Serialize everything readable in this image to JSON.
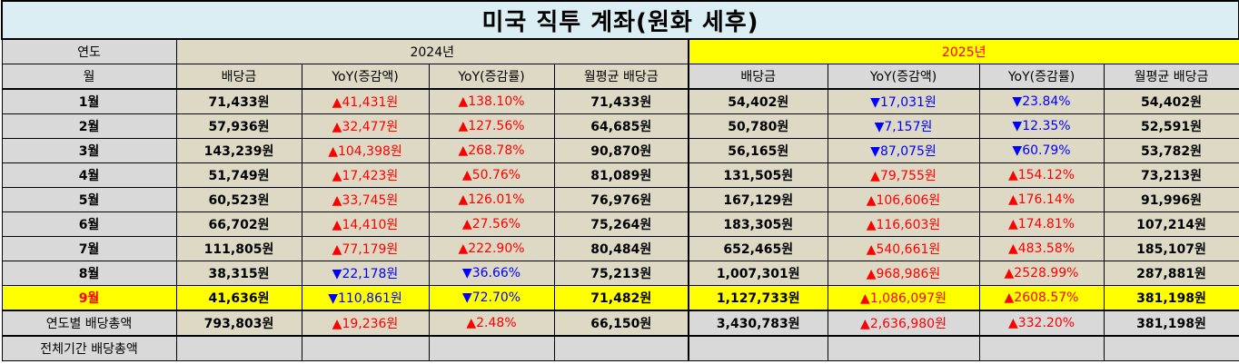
{
  "title": "미국 직투 계좌(원화 세후)",
  "year_label": "연도",
  "month_label": "월",
  "years": [
    "2024년",
    "2025년"
  ],
  "columns": [
    "배당금",
    "YoY(증감액)",
    "YoY(증감률)",
    "월평균 배당금"
  ],
  "colors": {
    "up": "#ff0000",
    "down": "#0000ff",
    "highlight": "#ffff00",
    "title_bg": "#daeef3",
    "data_bg": "#ddd9c4",
    "label_bg": "#d9d9d9"
  },
  "rows": [
    {
      "month": "1월",
      "y2024": [
        "71,433원",
        "▲41,431원",
        "▲138.10%",
        "71,433원"
      ],
      "d2024": [
        "up",
        "up"
      ],
      "y2025": [
        "54,402원",
        "▼17,031원",
        "▼23.84%",
        "54,402원"
      ],
      "d2025": [
        "dn",
        "dn"
      ]
    },
    {
      "month": "2월",
      "y2024": [
        "57,936원",
        "▲32,477원",
        "▲127.56%",
        "64,685원"
      ],
      "d2024": [
        "up",
        "up"
      ],
      "y2025": [
        "50,780원",
        "▼7,157원",
        "▼12.35%",
        "52,591원"
      ],
      "d2025": [
        "dn",
        "dn"
      ]
    },
    {
      "month": "3월",
      "y2024": [
        "143,239원",
        "▲104,398원",
        "▲268.78%",
        "90,870원"
      ],
      "d2024": [
        "up",
        "up"
      ],
      "y2025": [
        "56,165원",
        "▼87,075원",
        "▼60.79%",
        "53,782원"
      ],
      "d2025": [
        "dn",
        "dn"
      ]
    },
    {
      "month": "4월",
      "y2024": [
        "51,749원",
        "▲17,423원",
        "▲50.76%",
        "81,089원"
      ],
      "d2024": [
        "up",
        "up"
      ],
      "y2025": [
        "131,505원",
        "▲79,755원",
        "▲154.12%",
        "73,213원"
      ],
      "d2025": [
        "up",
        "up"
      ]
    },
    {
      "month": "5월",
      "y2024": [
        "60,523원",
        "▲33,745원",
        "▲126.01%",
        "76,976원"
      ],
      "d2024": [
        "up",
        "up"
      ],
      "y2025": [
        "167,129원",
        "▲106,606원",
        "▲176.14%",
        "91,996원"
      ],
      "d2025": [
        "up",
        "up"
      ]
    },
    {
      "month": "6월",
      "y2024": [
        "66,702원",
        "▲14,410원",
        "▲27.56%",
        "75,264원"
      ],
      "d2024": [
        "up",
        "up"
      ],
      "y2025": [
        "183,305원",
        "▲116,603원",
        "▲174.81%",
        "107,214원"
      ],
      "d2025": [
        "up",
        "up"
      ]
    },
    {
      "month": "7월",
      "y2024": [
        "111,805원",
        "▲77,179원",
        "▲222.90%",
        "80,484원"
      ],
      "d2024": [
        "up",
        "up"
      ],
      "y2025": [
        "652,465원",
        "▲540,661원",
        "▲483.58%",
        "185,107원"
      ],
      "d2025": [
        "up",
        "up"
      ]
    },
    {
      "month": "8월",
      "y2024": [
        "38,315원",
        "▼22,178원",
        "▼36.66%",
        "75,213원"
      ],
      "d2024": [
        "dn",
        "dn"
      ],
      "y2025": [
        "1,007,301원",
        "▲968,986원",
        "▲2528.99%",
        "287,881원"
      ],
      "d2025": [
        "up",
        "up"
      ]
    },
    {
      "month": "9월",
      "y2024": [
        "41,636원",
        "▼110,861원",
        "▼72.70%",
        "71,482원"
      ],
      "d2024": [
        "dn",
        "dn"
      ],
      "y2025": [
        "1,127,733원",
        "▲1,086,097원",
        "▲2608.57%",
        "381,198원"
      ],
      "d2025": [
        "up",
        "up"
      ],
      "highlight": true
    }
  ],
  "totals": {
    "label": "연도별 배당총액",
    "y2024": [
      "793,803원",
      "▲19,236원",
      "▲2.48%",
      "66,150원"
    ],
    "y2025": [
      "3,430,783원",
      "▲2,636,980원",
      "▲332.20%",
      "381,198원"
    ]
  },
  "grand_total_label": "전체기간 배당총액"
}
